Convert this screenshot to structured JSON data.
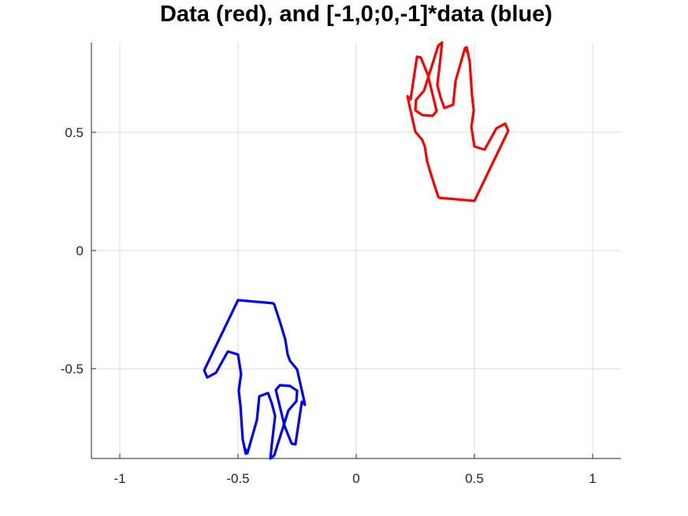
{
  "chart_data": {
    "type": "line",
    "title": "Data (red), and [-1,0;0,-1]*data (blue)",
    "xlabel": "",
    "ylabel": "",
    "xlim": [
      -1.12,
      1.12
    ],
    "ylim": [
      -0.88,
      0.88
    ],
    "grid": true,
    "x_ticks": [
      {
        "value": -1,
        "label": "-1"
      },
      {
        "value": -0.5,
        "label": "-0.5"
      },
      {
        "value": 0,
        "label": "0"
      },
      {
        "value": 0.5,
        "label": "0.5"
      },
      {
        "value": 1,
        "label": "1"
      }
    ],
    "y_ticks": [
      {
        "value": -0.5,
        "label": "-0.5"
      },
      {
        "value": 0,
        "label": "0"
      },
      {
        "value": 0.5,
        "label": "0.5"
      }
    ],
    "series": [
      {
        "color": "#ff0000",
        "x": [
          0.353,
          0.5,
          0.643,
          0.63,
          0.593,
          0.543,
          0.5,
          0.487,
          0.497,
          0.49,
          0.48,
          0.467,
          0.473,
          0.46,
          0.42,
          0.41,
          0.373,
          0.357,
          0.343,
          0.357,
          0.363,
          0.347,
          0.287,
          0.253,
          0.25,
          0.28,
          0.323,
          0.34,
          0.303,
          0.273,
          0.257,
          0.23,
          0.217,
          0.223,
          0.25,
          0.28,
          0.29,
          0.3,
          0.32,
          0.333,
          0.347,
          0.353
        ],
        "y": [
          0.223,
          0.21,
          0.507,
          0.537,
          0.517,
          0.427,
          0.44,
          0.523,
          0.593,
          0.653,
          0.8,
          0.86,
          0.833,
          0.857,
          0.717,
          0.617,
          0.603,
          0.647,
          0.7,
          0.82,
          0.88,
          0.867,
          0.677,
          0.637,
          0.593,
          0.573,
          0.57,
          0.59,
          0.743,
          0.817,
          0.82,
          0.64,
          0.653,
          0.623,
          0.503,
          0.467,
          0.44,
          0.377,
          0.31,
          0.27,
          0.227,
          0.223
        ]
      },
      {
        "color": "#0000ff",
        "x": [
          -0.353,
          -0.5,
          -0.643,
          -0.63,
          -0.593,
          -0.543,
          -0.5,
          -0.487,
          -0.497,
          -0.49,
          -0.48,
          -0.467,
          -0.473,
          -0.46,
          -0.42,
          -0.41,
          -0.373,
          -0.357,
          -0.343,
          -0.357,
          -0.363,
          -0.347,
          -0.287,
          -0.253,
          -0.25,
          -0.28,
          -0.323,
          -0.34,
          -0.303,
          -0.273,
          -0.257,
          -0.23,
          -0.217,
          -0.223,
          -0.25,
          -0.28,
          -0.29,
          -0.3,
          -0.32,
          -0.333,
          -0.347,
          -0.353
        ],
        "y": [
          -0.223,
          -0.21,
          -0.507,
          -0.537,
          -0.517,
          -0.427,
          -0.44,
          -0.523,
          -0.593,
          -0.653,
          -0.8,
          -0.86,
          -0.833,
          -0.857,
          -0.717,
          -0.617,
          -0.603,
          -0.647,
          -0.7,
          -0.82,
          -0.88,
          -0.867,
          -0.677,
          -0.637,
          -0.593,
          -0.573,
          -0.57,
          -0.59,
          -0.743,
          -0.817,
          -0.82,
          -0.64,
          -0.653,
          -0.623,
          -0.503,
          -0.467,
          -0.44,
          -0.377,
          -0.31,
          -0.27,
          -0.227,
          -0.223
        ]
      }
    ]
  }
}
